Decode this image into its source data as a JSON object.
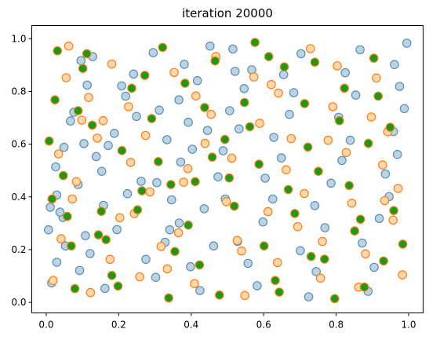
{
  "chart_data": {
    "type": "scatter",
    "title": "iteration 20000",
    "xlabel": "",
    "ylabel": "",
    "xlim": [
      -0.04,
      1.04
    ],
    "ylim": [
      -0.04,
      1.05
    ],
    "grid": false,
    "xticks": [
      "0.0",
      "0.2",
      "0.4",
      "0.6",
      "0.8",
      "1.0"
    ],
    "yticks": [
      "0.0",
      "0.2",
      "0.4",
      "0.6",
      "0.8",
      "1.0"
    ],
    "point_count": 1000,
    "colors": {
      "blue_fill": "#bcd3e3",
      "blue_edge": "#5b8fb6",
      "orange_fill": "#ffd7ae",
      "orange_edge": "#ff7f0e",
      "green_fill": "#1a9a1a",
      "green_edge": "#ff7f0e"
    },
    "series": [
      {
        "style": "blue",
        "x": [
          0.029,
          0.006,
          0.053,
          0.029,
          0.011,
          0.026,
          0.092,
          0.108,
          0.046,
          0.088,
          0.049,
          0.104,
          0.076,
          0.113,
          0.096,
          0.162,
          0.121,
          0.195,
          0.158,
          0.224,
          0.153,
          0.138,
          0.188,
          0.249,
          0.219,
          0.241,
          0.295,
          0.302,
          0.275,
          0.328,
          0.367,
          0.346,
          0.305,
          0.371,
          0.333,
          0.392,
          0.366,
          0.417,
          0.381,
          0.452,
          0.424,
          0.398,
          0.462,
          0.436,
          0.474,
          0.488,
          0.532,
          0.506,
          0.546,
          0.567,
          0.515,
          0.582,
          0.557,
          0.528,
          0.598,
          0.625,
          0.604,
          0.649,
          0.628,
          0.671,
          0.683,
          0.655,
          0.703,
          0.724,
          0.745,
          0.701,
          0.769,
          0.741,
          0.786,
          0.816,
          0.839,
          0.807,
          0.854,
          0.825,
          0.866,
          0.888,
          0.905,
          0.872,
          0.919,
          0.946,
          0.936,
          0.969,
          0.958,
          0.988,
          0.975,
          0.961,
          0.995,
          0.015,
          0.038,
          0.067,
          0.128,
          0.171,
          0.208,
          0.262,
          0.312,
          0.341,
          0.403,
          0.445,
          0.494,
          0.521
        ],
        "y": [
          0.152,
          0.275,
          0.214,
          0.407,
          0.361,
          0.514,
          0.121,
          0.253,
          0.322,
          0.447,
          0.588,
          0.602,
          0.721,
          0.824,
          0.917,
          0.053,
          0.185,
          0.276,
          0.368,
          0.412,
          0.497,
          0.553,
          0.641,
          0.705,
          0.782,
          0.866,
          0.947,
          0.095,
          0.163,
          0.228,
          0.301,
          0.389,
          0.454,
          0.532,
          0.617,
          0.683,
          0.768,
          0.841,
          0.903,
          0.972,
          0.045,
          0.135,
          0.214,
          0.355,
          0.476,
          0.575,
          0.658,
          0.727,
          0.811,
          0.882,
          0.961,
          0.063,
          0.148,
          0.231,
          0.305,
          0.392,
          0.471,
          0.548,
          0.626,
          0.713,
          0.795,
          0.864,
          0.943,
          0.021,
          0.117,
          0.196,
          0.283,
          0.367,
          0.452,
          0.538,
          0.615,
          0.702,
          0.786,
          0.871,
          0.958,
          0.042,
          0.133,
          0.225,
          0.318,
          0.401,
          0.487,
          0.561,
          0.648,
          0.735,
          0.819,
          0.902,
          0.983,
          0.074,
          0.342,
          0.688,
          0.932,
          0.595,
          0.821,
          0.459,
          0.729,
          0.275,
          0.581,
          0.652,
          0.392,
          0.876
        ]
      },
      {
        "style": "orange",
        "x": [
          0.019,
          0.041,
          0.072,
          0.034,
          0.098,
          0.055,
          0.122,
          0.083,
          0.141,
          0.176,
          0.117,
          0.203,
          0.233,
          0.181,
          0.258,
          0.286,
          0.227,
          0.317,
          0.274,
          0.353,
          0.334,
          0.379,
          0.413,
          0.365,
          0.438,
          0.468,
          0.409,
          0.497,
          0.455,
          0.539,
          0.512,
          0.573,
          0.548,
          0.612,
          0.589,
          0.638,
          0.662,
          0.621,
          0.694,
          0.676,
          0.729,
          0.757,
          0.712,
          0.791,
          0.762,
          0.828,
          0.803,
          0.862,
          0.843,
          0.897,
          0.881,
          0.928,
          0.911,
          0.957,
          0.942,
          0.983,
          0.971,
          0.062,
          0.157,
          0.243,
          0.391,
          0.527,
          0.641,
          0.778,
          0.934
        ],
        "y": [
          0.083,
          0.241,
          0.392,
          0.563,
          0.691,
          0.852,
          0.037,
          0.458,
          0.623,
          0.163,
          0.777,
          0.321,
          0.531,
          0.904,
          0.097,
          0.419,
          0.742,
          0.212,
          0.633,
          0.872,
          0.127,
          0.456,
          0.783,
          0.264,
          0.603,
          0.932,
          0.071,
          0.382,
          0.713,
          0.195,
          0.547,
          0.855,
          0.026,
          0.344,
          0.679,
          0.151,
          0.503,
          0.826,
          0.287,
          0.621,
          0.962,
          0.092,
          0.413,
          0.742,
          0.231,
          0.568,
          0.897,
          0.058,
          0.376,
          0.703,
          0.184,
          0.521,
          0.851,
          0.312,
          0.647,
          0.104,
          0.432,
          0.972,
          0.689,
          0.337,
          0.507,
          0.235,
          0.794,
          0.615,
          0.386
        ]
      },
      {
        "style": "green",
        "x": [
          0.008,
          0.031,
          0.058,
          0.024,
          0.079,
          0.047,
          0.101,
          0.069,
          0.127,
          0.152,
          0.112,
          0.181,
          0.209,
          0.165,
          0.236,
          0.264,
          0.198,
          0.291,
          0.252,
          0.321,
          0.355,
          0.309,
          0.383,
          0.338,
          0.411,
          0.437,
          0.392,
          0.466,
          0.423,
          0.493,
          0.519,
          0.478,
          0.547,
          0.505,
          0.576,
          0.601,
          0.562,
          0.632,
          0.587,
          0.657,
          0.686,
          0.643,
          0.713,
          0.668,
          0.741,
          0.768,
          0.722,
          0.796,
          0.751,
          0.823,
          0.851,
          0.809,
          0.878,
          0.836,
          0.904,
          0.931,
          0.889,
          0.959,
          0.916,
          0.984,
          0.949,
          0.016,
          0.088,
          0.144,
          0.272,
          0.344,
          0.458,
          0.614,
          0.731,
          0.867
        ],
        "y": [
          0.612,
          0.954,
          0.326,
          0.768,
          0.052,
          0.481,
          0.887,
          0.214,
          0.672,
          0.345,
          0.943,
          0.102,
          0.576,
          0.238,
          0.812,
          0.423,
          0.062,
          0.697,
          0.351,
          0.967,
          0.193,
          0.534,
          0.831,
          0.017,
          0.458,
          0.739,
          0.293,
          0.916,
          0.142,
          0.618,
          0.365,
          0.028,
          0.758,
          0.472,
          0.986,
          0.214,
          0.666,
          0.083,
          0.524,
          0.893,
          0.337,
          0.039,
          0.754,
          0.428,
          0.911,
          0.164,
          0.589,
          0.014,
          0.497,
          0.812,
          0.271,
          0.689,
          0.058,
          0.443,
          0.926,
          0.157,
          0.603,
          0.348,
          0.782,
          0.221,
          0.664,
          0.392,
          0.727,
          0.256,
          0.861,
          0.447,
          0.551,
          0.932,
          0.174,
          0.315
        ]
      }
    ]
  }
}
